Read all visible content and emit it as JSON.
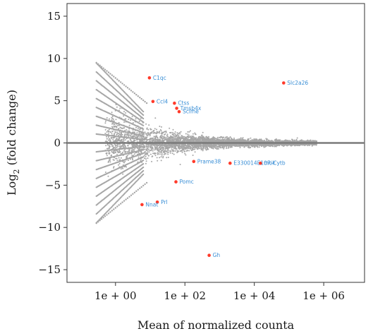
{
  "chart_data": {
    "type": "scatter",
    "title": "",
    "xlabel": "Mean of normalized counta",
    "ylabel_base": "Log",
    "ylabel_sub": "2",
    "ylabel_rest": " (fold change)",
    "x_scale": "log10",
    "xlim": [
      0.04,
      15000000
    ],
    "ylim": [
      -16.5,
      16.5
    ],
    "x_ticks": [
      {
        "value": 1,
        "label": "1e + 00"
      },
      {
        "value": 100,
        "label": "1e + 02"
      },
      {
        "value": 10000,
        "label": "1e + 04"
      },
      {
        "value": 1000000,
        "label": "1e + 06"
      }
    ],
    "y_ticks": [
      {
        "value": 15,
        "label": "15"
      },
      {
        "value": 10,
        "label": "10"
      },
      {
        "value": 5,
        "label": "5"
      },
      {
        "value": 0,
        "label": "0"
      },
      {
        "value": -5,
        "label": "−5"
      },
      {
        "value": -10,
        "label": "−10"
      },
      {
        "value": -15,
        "label": "−15"
      }
    ],
    "grid": false,
    "colors": {
      "background_points": "#a6a6a6",
      "significant_points": "#ff3a2a",
      "gene_labels": "#3a8fd6",
      "zero_line": "#7a7a7a"
    },
    "highlighted_genes": [
      {
        "name": "C1qc",
        "x": 9.5,
        "y": 7.7
      },
      {
        "name": "Slc2a26",
        "x": 70000,
        "y": 7.1
      },
      {
        "name": "Ccl4",
        "x": 12,
        "y": 4.9
      },
      {
        "name": "Ctss",
        "x": 50,
        "y": 4.7
      },
      {
        "name": "Tmsb4x",
        "x": 58,
        "y": 4.1
      },
      {
        "name": "Sclme",
        "x": 68,
        "y": 3.7
      },
      {
        "name": "Prame38",
        "x": 180,
        "y": -2.2
      },
      {
        "name": "E330014E10Rik",
        "x": 2000,
        "y": -2.4
      },
      {
        "name": "mt-Cytb",
        "x": 15000,
        "y": -2.4
      },
      {
        "name": "Pomc",
        "x": 55,
        "y": -4.6
      },
      {
        "name": "Prl",
        "x": 16,
        "y": -7.0
      },
      {
        "name": "Nnat",
        "x": 5.8,
        "y": -7.3
      },
      {
        "name": "Gh",
        "x": 500,
        "y": -13.3
      }
    ]
  }
}
